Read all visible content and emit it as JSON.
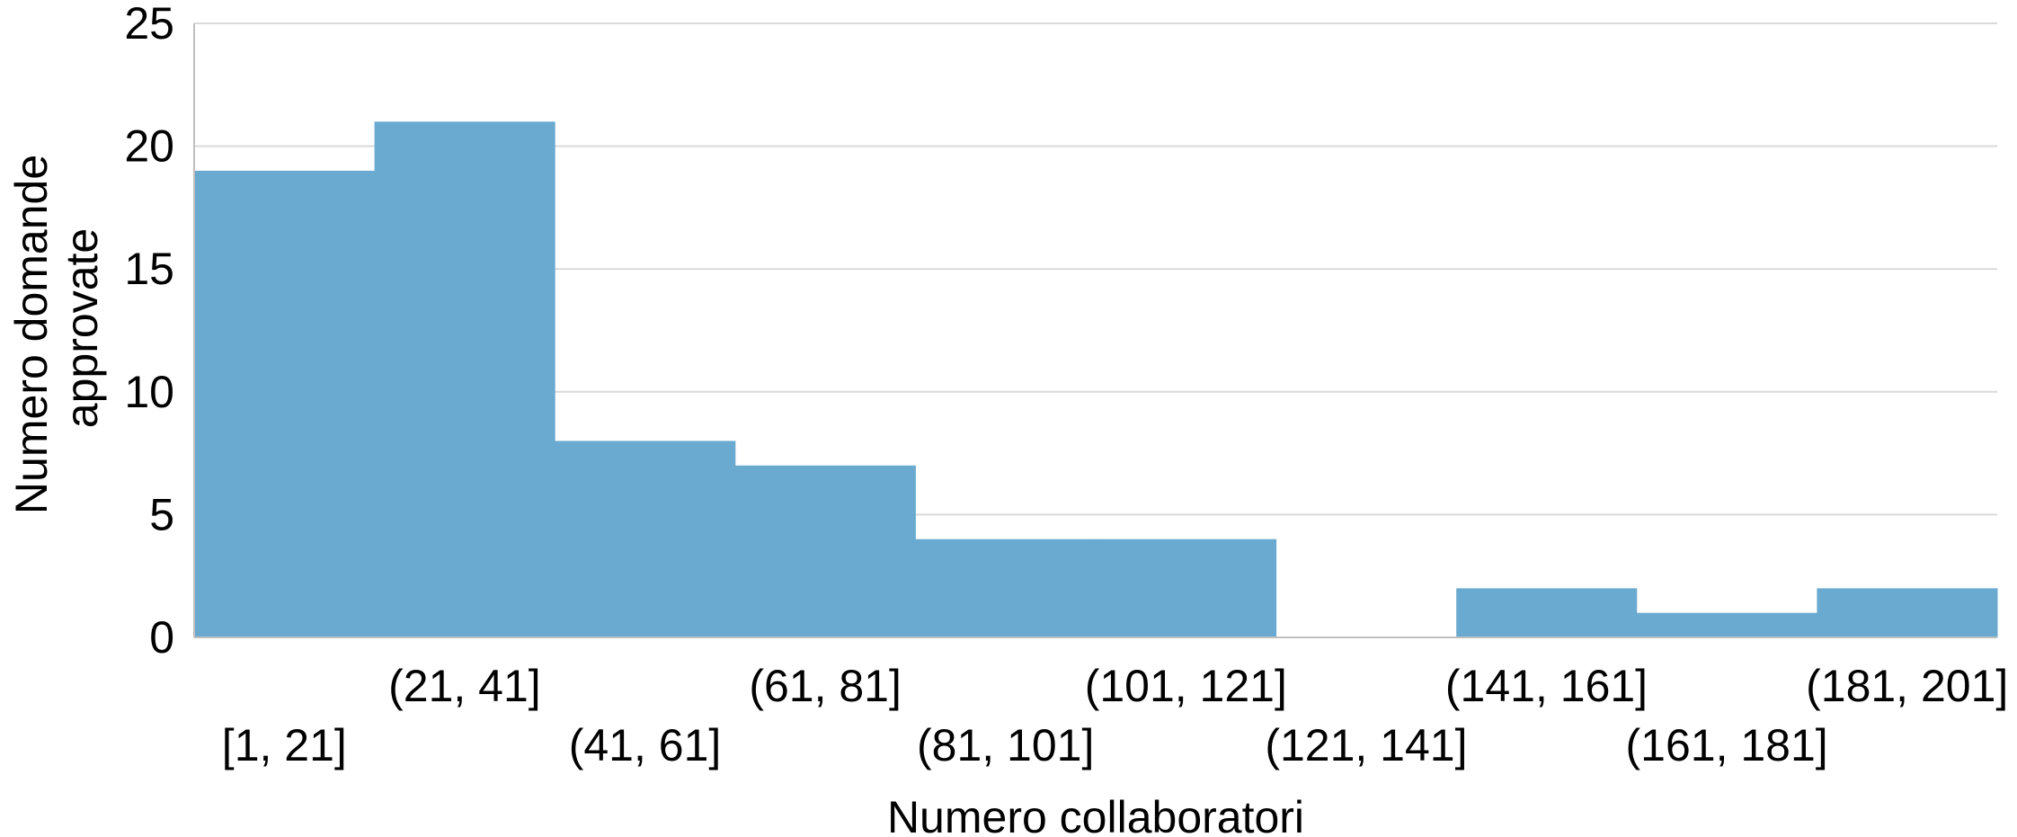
{
  "chart_data": {
    "type": "bar",
    "categories": [
      "[1, 21]",
      "(21, 41]",
      "(41, 61]",
      "(61, 81]",
      "(81, 101]",
      "(101, 121]",
      "(121, 141]",
      "(141, 161]",
      "(161, 181]",
      "(181, 201]"
    ],
    "values": [
      19,
      21,
      8,
      7,
      4,
      4,
      0,
      2,
      1,
      2
    ],
    "xlabel": "Numero collaboratori",
    "ylabel_lines": [
      "Numero domande",
      "approvate"
    ],
    "ylim": [
      0,
      25
    ],
    "yticks": [
      0,
      5,
      10,
      15,
      20,
      25
    ],
    "grid": true,
    "bar_color": "#6aaad0",
    "gridline_color": "#d9d9d9"
  }
}
